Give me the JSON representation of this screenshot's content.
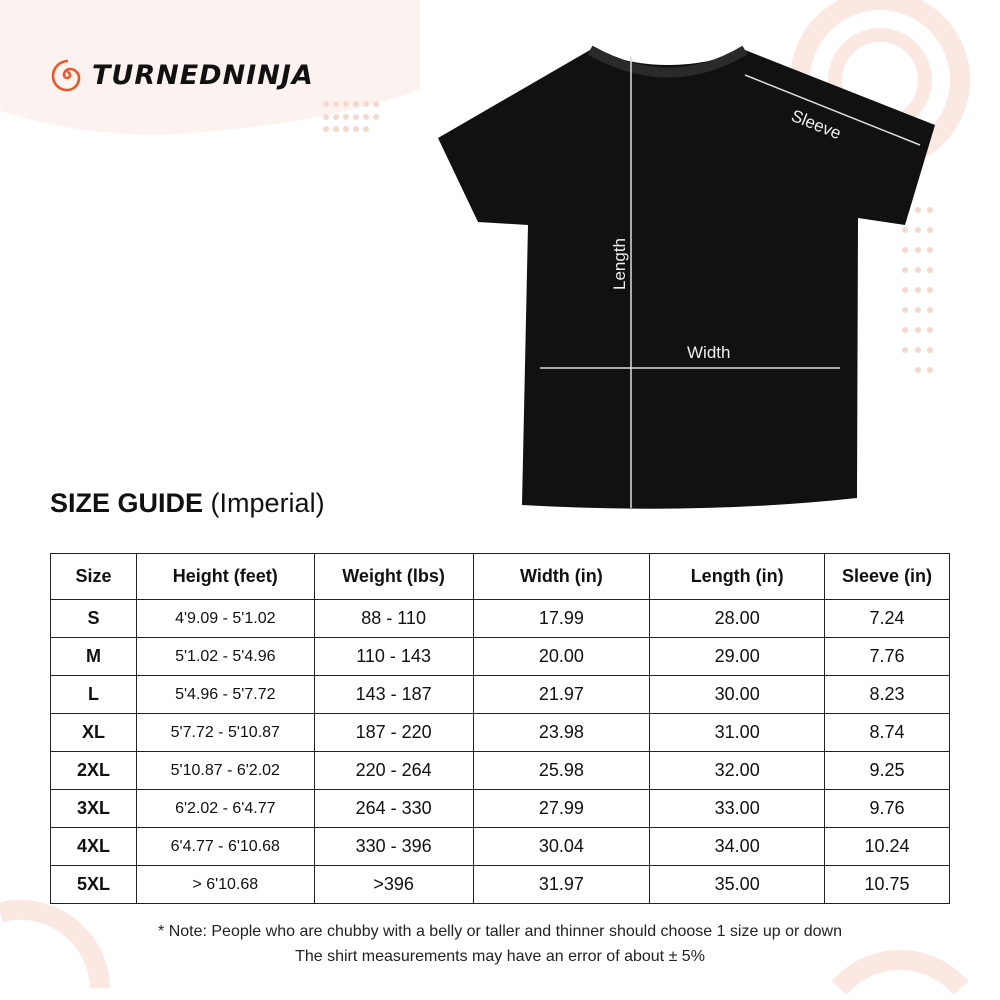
{
  "brand": {
    "name": "TURNEDNINJA",
    "accent": "#e8582a"
  },
  "guide": {
    "title_bold": "SIZE GUIDE",
    "title_rest": "(Imperial)"
  },
  "diagram": {
    "sleeve": "Sleeve",
    "length": "Length",
    "width": "Width"
  },
  "table": {
    "headers": [
      "Size",
      "Height (feet)",
      "Weight (lbs)",
      "Width (in)",
      "Length (in)",
      "Sleeve (in)"
    ],
    "rows": [
      [
        "S",
        "4'9.09 - 5'1.02",
        "88 - 110",
        "17.99",
        "28.00",
        "7.24"
      ],
      [
        "M",
        "5'1.02 - 5'4.96",
        "110 - 143",
        "20.00",
        "29.00",
        "7.76"
      ],
      [
        "L",
        "5'4.96 - 5'7.72",
        "143 - 187",
        "21.97",
        "30.00",
        "8.23"
      ],
      [
        "XL",
        "5'7.72 - 5'10.87",
        "187 - 220",
        "23.98",
        "31.00",
        "8.74"
      ],
      [
        "2XL",
        "5'10.87 - 6'2.02",
        "220 - 264",
        "25.98",
        "32.00",
        "9.25"
      ],
      [
        "3XL",
        "6'2.02 - 6'4.77",
        "264 - 330",
        "27.99",
        "33.00",
        "9.76"
      ],
      [
        "4XL",
        "6'4.77 - 6'10.68",
        "330 - 396",
        "30.04",
        "34.00",
        "10.24"
      ],
      [
        "5XL",
        "> 6'10.68",
        ">396",
        "31.97",
        "35.00",
        "10.75"
      ]
    ]
  },
  "notes": [
    "* Note: People who are chubby with a belly or taller and thinner should choose 1 size up or down",
    "The shirt measurements may have an error of about ± 5%"
  ]
}
